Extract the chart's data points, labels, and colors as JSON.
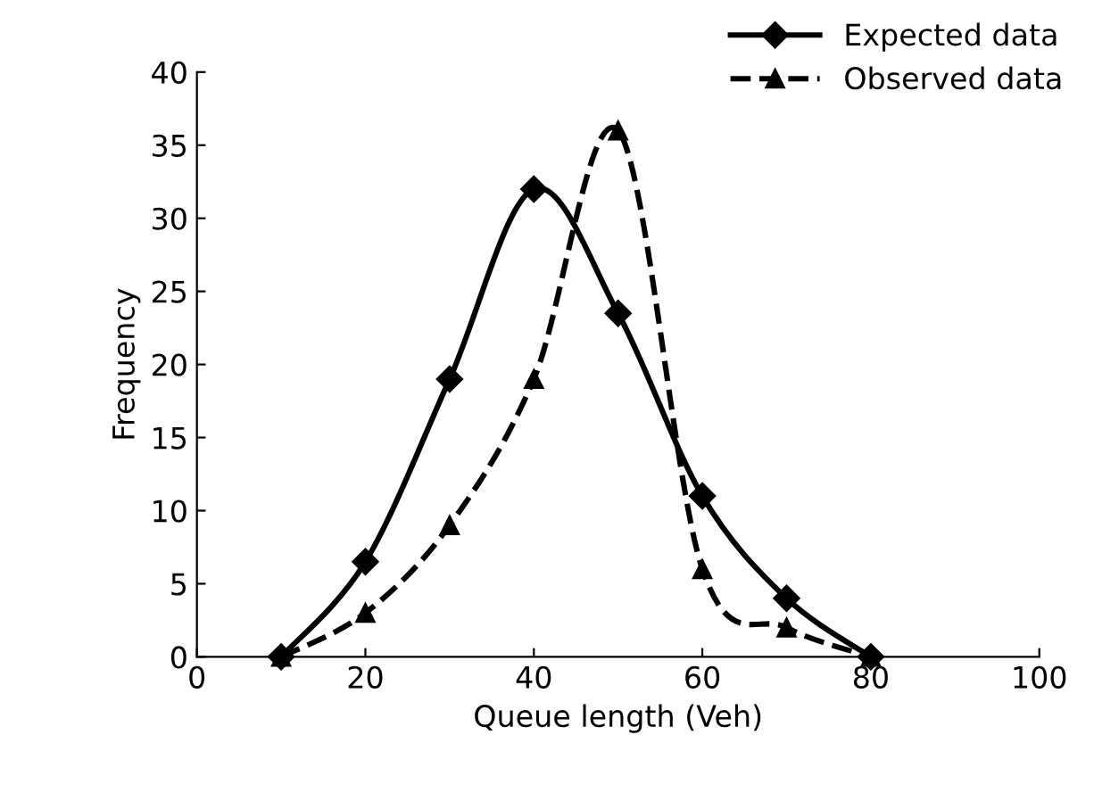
{
  "chart_data": {
    "type": "line",
    "xlabel": "Queue length (Veh)",
    "ylabel": "Frequency",
    "xlim": [
      0,
      100
    ],
    "xticks": [
      0,
      20,
      40,
      60,
      80,
      100
    ],
    "ylim": [
      0,
      40
    ],
    "yticks": [
      0,
      5,
      10,
      15,
      20,
      25,
      30,
      35,
      40
    ],
    "grid": false,
    "legend": "top right",
    "series": [
      {
        "name": "Expected data",
        "color": "#000000",
        "marker": "diamond",
        "line_style": "solid",
        "x": [
          10,
          20,
          30,
          40,
          50,
          60,
          70,
          80
        ],
        "values": [
          0,
          6.5,
          19,
          32,
          23.5,
          11,
          4,
          0
        ]
      },
      {
        "name": "Observed data",
        "color": "#000000",
        "marker": "triangle",
        "line_style": "dashed",
        "x": [
          10,
          20,
          30,
          40,
          50,
          60,
          70,
          80
        ],
        "values": [
          0,
          3,
          9,
          19,
          36,
          6,
          2,
          0
        ]
      }
    ]
  }
}
